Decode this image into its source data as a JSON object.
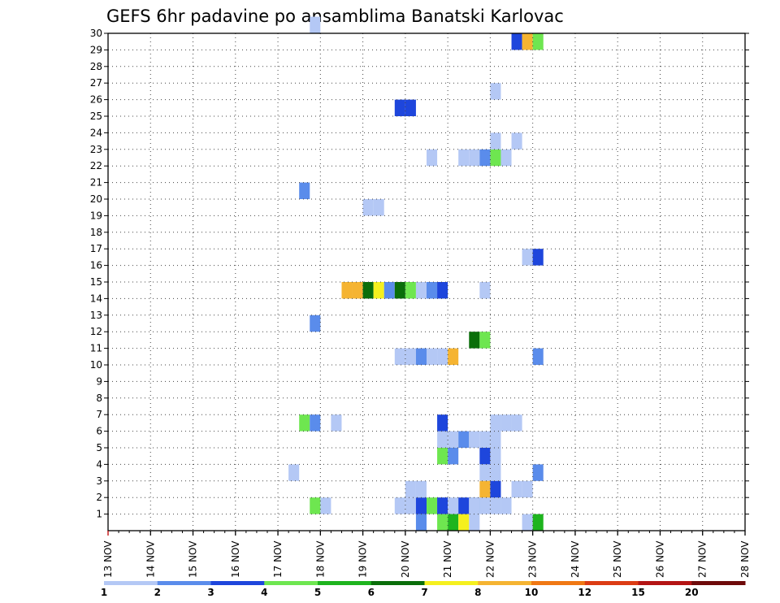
{
  "chart_data": {
    "type": "heatmap",
    "title": "GEFS 6hr padavine po ansamblima Banatski Karlovac",
    "xlabel": "",
    "ylabel": "",
    "x_tick_labels": [
      "13 NOV",
      "14 NOV",
      "15 NOV",
      "16 NOV",
      "17 NOV",
      "18 NOV",
      "19 NOV",
      "20 NOV",
      "21 NOV",
      "22 NOV",
      "23 NOV",
      "24 NOV",
      "25 NOV",
      "26 NOV",
      "27 NOV",
      "28 NOV"
    ],
    "x_range": [
      0,
      60
    ],
    "x_unit_note": "x values are 6-hour steps after 13 NOV 00Z",
    "y_tick_labels": [
      "1",
      "2",
      "3",
      "4",
      "5",
      "6",
      "7",
      "8",
      "9",
      "10",
      "11",
      "12",
      "13",
      "14",
      "15",
      "16",
      "17",
      "18",
      "19",
      "20",
      "21",
      "22",
      "23",
      "24",
      "25",
      "26",
      "27",
      "28",
      "29",
      "30"
    ],
    "y_range": [
      0,
      30
    ],
    "grid": true,
    "colorbar": {
      "labels": [
        "1",
        "2",
        "3",
        "4",
        "5",
        "6",
        "7",
        "8",
        "10",
        "12",
        "15",
        "20"
      ],
      "colors": [
        "#b4c8f5",
        "#5a8ceb",
        "#1e46dc",
        "#6ee650",
        "#1eb41e",
        "#0a6e0a",
        "#f5f01e",
        "#f5b432",
        "#f07814",
        "#dc3c14",
        "#b41414",
        "#6e0a0a"
      ]
    },
    "cells": [
      [
        22,
        14,
        "#f5b432"
      ],
      [
        23,
        14,
        "#f5b432"
      ],
      [
        24,
        14,
        "#0a6e0a"
      ],
      [
        25,
        14,
        "#f5f01e"
      ],
      [
        26,
        14,
        "#5a8ceb"
      ],
      [
        27,
        14,
        "#0a6e0a"
      ],
      [
        28,
        14,
        "#6ee650"
      ],
      [
        29,
        14,
        "#b4c8f5"
      ],
      [
        30,
        14,
        "#b4c8f5"
      ],
      [
        24,
        19,
        "#b4c8f5"
      ],
      [
        25,
        19,
        "#b4c8f5"
      ],
      [
        18,
        20,
        "#5a8ceb"
      ],
      [
        19,
        30,
        "#b4c8f5"
      ],
      [
        19,
        12,
        "#5a8ceb"
      ],
      [
        18,
        6,
        "#6ee650"
      ],
      [
        19,
        6,
        "#5a8ceb"
      ],
      [
        21,
        6,
        "#b4c8f5"
      ],
      [
        17,
        3,
        "#b4c8f5"
      ],
      [
        19,
        1,
        "#6ee650"
      ],
      [
        20,
        1,
        "#b4c8f5"
      ],
      [
        27,
        25,
        "#1e46dc"
      ],
      [
        28,
        25,
        "#1e46dc"
      ],
      [
        27,
        10,
        "#b4c8f5"
      ],
      [
        28,
        10,
        "#b4c8f5"
      ],
      [
        29,
        10,
        "#5a8ceb"
      ],
      [
        30,
        10,
        "#b4c8f5"
      ],
      [
        27,
        1,
        "#b4c8f5"
      ],
      [
        28,
        1,
        "#b4c8f5"
      ],
      [
        29,
        1,
        "#1e46dc"
      ],
      [
        30,
        1,
        "#6ee650"
      ],
      [
        31,
        1,
        "#b4c8f5"
      ],
      [
        28,
        2,
        "#b4c8f5"
      ],
      [
        29,
        2,
        "#b4c8f5"
      ],
      [
        29,
        0,
        "#5a8ceb"
      ],
      [
        30,
        22,
        "#b4c8f5"
      ],
      [
        30,
        14,
        "#5a8ceb"
      ],
      [
        31,
        14,
        "#1e46dc"
      ],
      [
        31,
        4,
        "#6ee650"
      ],
      [
        32,
        4,
        "#5a8ceb"
      ],
      [
        31,
        5,
        "#b4c8f5"
      ],
      [
        32,
        5,
        "#b4c8f5"
      ],
      [
        33,
        5,
        "#5a8ceb"
      ],
      [
        34,
        5,
        "#b4c8f5"
      ],
      [
        35,
        5,
        "#b4c8f5"
      ],
      [
        36,
        5,
        "#b4c8f5"
      ],
      [
        31,
        6,
        "#1e46dc"
      ],
      [
        31,
        10,
        "#b4c8f5"
      ],
      [
        32,
        10,
        "#f5b432"
      ],
      [
        31,
        1,
        "#1e46dc"
      ],
      [
        32,
        1,
        "#b4c8f5"
      ],
      [
        33,
        1,
        "#1e46dc"
      ],
      [
        34,
        1,
        "#5a8ceb"
      ],
      [
        31,
        0,
        "#6ee650"
      ],
      [
        32,
        0,
        "#1eb41e"
      ],
      [
        33,
        0,
        "#f5f01e"
      ],
      [
        34,
        0,
        "#b4c8f5"
      ],
      [
        33,
        22,
        "#b4c8f5"
      ],
      [
        34,
        22,
        "#b4c8f5"
      ],
      [
        34,
        1,
        "#b4c8f5"
      ],
      [
        35,
        1,
        "#b4c8f5"
      ],
      [
        36,
        1,
        "#b4c8f5"
      ],
      [
        35,
        22,
        "#5a8ceb"
      ],
      [
        36,
        22,
        "#6ee650"
      ],
      [
        37,
        22,
        "#b4c8f5"
      ],
      [
        36,
        23,
        "#b4c8f5"
      ],
      [
        36,
        26,
        "#b4c8f5"
      ],
      [
        35,
        14,
        "#b4c8f5"
      ],
      [
        34,
        11,
        "#0a6e0a"
      ],
      [
        35,
        11,
        "#6ee650"
      ],
      [
        35,
        4,
        "#1e46dc"
      ],
      [
        36,
        4,
        "#b4c8f5"
      ],
      [
        35,
        3,
        "#b4c8f5"
      ],
      [
        36,
        3,
        "#b4c8f5"
      ],
      [
        35,
        2,
        "#f5b432"
      ],
      [
        36,
        2,
        "#1e46dc"
      ],
      [
        36,
        6,
        "#b4c8f5"
      ],
      [
        37,
        6,
        "#b4c8f5"
      ],
      [
        38,
        6,
        "#b4c8f5"
      ],
      [
        37,
        1,
        "#b4c8f5"
      ],
      [
        38,
        2,
        "#b4c8f5"
      ],
      [
        39,
        2,
        "#b4c8f5"
      ],
      [
        38,
        23,
        "#b4c8f5"
      ],
      [
        38,
        29,
        "#1e46dc"
      ],
      [
        39,
        29,
        "#f5b432"
      ],
      [
        40,
        29,
        "#6ee650"
      ],
      [
        39,
        16,
        "#b4c8f5"
      ],
      [
        40,
        16,
        "#1e46dc"
      ],
      [
        40,
        10,
        "#5a8ceb"
      ],
      [
        40,
        3,
        "#5a8ceb"
      ],
      [
        39,
        0,
        "#b4c8f5"
      ],
      [
        40,
        0,
        "#1eb41e"
      ]
    ]
  }
}
